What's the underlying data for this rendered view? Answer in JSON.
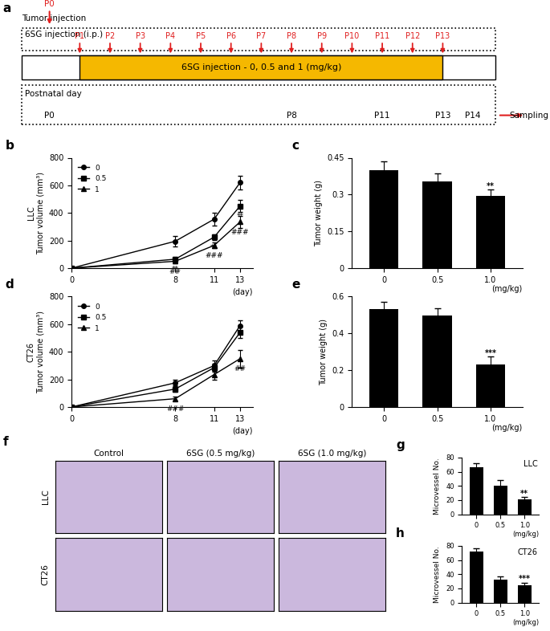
{
  "timeline": {
    "panel": "a",
    "tumor_label": "Tumor injection",
    "tumor_day": "P0",
    "injection_label": "6SG injection (i.p.)",
    "injection_days": [
      "P1",
      "P2",
      "P3",
      "P4",
      "P5",
      "P6",
      "P7",
      "P8",
      "P9",
      "P10",
      "P11",
      "P12",
      "P13"
    ],
    "bar_text": "6SG injection - 0, 0.5 and 1 (mg/kg)",
    "day_label": "Postnatal day",
    "days": [
      "P0",
      "P8",
      "P11",
      "P13",
      "P14"
    ],
    "sampling": "Sampling"
  },
  "images": {
    "panel": "f",
    "columns": [
      "Control",
      "6SG (0.5 mg/kg)",
      "6SG (1.0 mg/kg)"
    ],
    "rows": [
      "LLC",
      "CT26"
    ]
  },
  "chart_data": [
    {
      "panel": "b",
      "type": "line",
      "group": "LLC",
      "ylabel": "Tumor volume (mm³)",
      "xlabel": "(day)",
      "x": [
        0,
        8,
        11,
        13
      ],
      "xlim": [
        0,
        14
      ],
      "xticks": [
        0,
        8,
        11,
        13
      ],
      "ylim": [
        0,
        800
      ],
      "yticks": [
        0,
        200,
        400,
        600,
        800
      ],
      "legend": "upper left",
      "series": [
        {
          "name": "0",
          "color": "#000000",
          "marker": "circle",
          "values": [
            0,
            195,
            355,
            620
          ],
          "errors": [
            0,
            40,
            45,
            50
          ],
          "sig": [
            null,
            null,
            null,
            null
          ]
        },
        {
          "name": "0.5",
          "color": "#000000",
          "marker": "square",
          "values": [
            0,
            65,
            225,
            450
          ],
          "errors": [
            0,
            15,
            20,
            45
          ],
          "sig": [
            null,
            "**",
            "**",
            "**"
          ]
        },
        {
          "name": "1",
          "color": "#000000",
          "marker": "triangle",
          "values": [
            0,
            50,
            165,
            335
          ],
          "errors": [
            0,
            15,
            20,
            45
          ],
          "sig": [
            null,
            "##",
            "###",
            "###"
          ]
        }
      ]
    },
    {
      "panel": "c",
      "type": "bar",
      "ylabel": "Tumor weight (g)",
      "xlabel": "(mg/kg)",
      "categories": [
        "0",
        "0.5",
        "1.0"
      ],
      "values": [
        0.4,
        0.355,
        0.295
      ],
      "errors": [
        0.035,
        0.03,
        0.025
      ],
      "sig": [
        null,
        null,
        "**"
      ],
      "color": "#000000",
      "ylim": [
        0,
        0.45
      ],
      "yticks": [
        0,
        0.15,
        {
          "value": 0.3,
          "label": "0.3"
        },
        0.45
      ]
    },
    {
      "panel": "d",
      "type": "line",
      "group": "CT26",
      "ylabel": "Tumor volume (mm³)",
      "xlabel": "(day)",
      "x": [
        0,
        8,
        11,
        13
      ],
      "xlim": [
        0,
        14
      ],
      "xticks": [
        0,
        8,
        11,
        13
      ],
      "ylim": [
        0,
        800
      ],
      "yticks": [
        0,
        200,
        400,
        600,
        800
      ],
      "legend": "upper left",
      "series": [
        {
          "name": "0",
          "color": "#000000",
          "marker": "circle",
          "values": [
            0,
            175,
            300,
            590
          ],
          "errors": [
            0,
            20,
            40,
            40
          ],
          "sig": [
            null,
            null,
            null,
            null
          ]
        },
        {
          "name": "0.5",
          "color": "#000000",
          "marker": "square",
          "values": [
            0,
            130,
            285,
            540
          ],
          "errors": [
            0,
            20,
            30,
            40
          ],
          "sig": [
            null,
            null,
            null,
            null
          ]
        },
        {
          "name": "1",
          "color": "#000000",
          "marker": "triangle",
          "values": [
            0,
            60,
            235,
            350
          ],
          "errors": [
            0,
            15,
            35,
            65
          ],
          "sig": [
            null,
            "###",
            null,
            "##"
          ]
        }
      ]
    },
    {
      "panel": "e",
      "type": "bar",
      "ylabel": "Tumor weight (g)",
      "xlabel": "(mg/kg)",
      "categories": [
        "0",
        "0.5",
        "1.0"
      ],
      "values": [
        0.53,
        0.495,
        0.23
      ],
      "errors": [
        0.04,
        0.04,
        0.045
      ],
      "sig": [
        null,
        null,
        "***"
      ],
      "color": "#000000",
      "ylim": [
        0,
        0.6
      ],
      "yticks": [
        0,
        0.2,
        0.4,
        0.6
      ]
    },
    {
      "panel": "g",
      "type": "bar",
      "group": "LLC",
      "ylabel": "Microvessel No.",
      "xlabel": "(mg/kg)",
      "categories": [
        "0",
        "0.5",
        "1.0"
      ],
      "values": [
        66,
        40,
        21
      ],
      "errors": [
        6,
        8,
        3
      ],
      "sig": [
        null,
        null,
        "**"
      ],
      "color": "#000000",
      "ylim": [
        0,
        80
      ],
      "yticks": [
        0,
        20,
        40,
        60,
        80
      ]
    },
    {
      "panel": "h",
      "type": "bar",
      "group": "CT26",
      "ylabel": "Microvessel No.",
      "xlabel": "(mg/kg)",
      "categories": [
        "0",
        "0.5",
        "1.0"
      ],
      "values": [
        72,
        32,
        25
      ],
      "errors": [
        4,
        5,
        3
      ],
      "sig": [
        null,
        null,
        "***"
      ],
      "color": "#000000",
      "ylim": [
        0,
        80
      ],
      "yticks": [
        0,
        20,
        40,
        60,
        80
      ]
    }
  ]
}
